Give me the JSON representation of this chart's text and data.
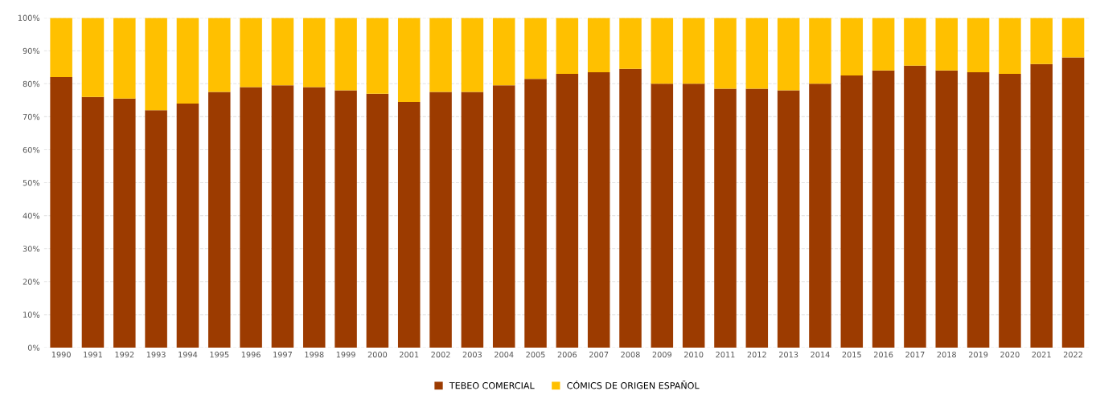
{
  "chart_data": {
    "type": "bar",
    "stacked": true,
    "categories": [
      "1990",
      "1991",
      "1992",
      "1993",
      "1994",
      "1995",
      "1996",
      "1997",
      "1998",
      "1999",
      "2000",
      "2001",
      "2002",
      "2003",
      "2004",
      "2005",
      "2006",
      "2007",
      "2008",
      "2009",
      "2010",
      "2011",
      "2012",
      "2013",
      "2014",
      "2015",
      "2016",
      "2017",
      "2018",
      "2019",
      "2020",
      "2021",
      "2022"
    ],
    "series": [
      {
        "name": "TEBEO COMERCIAL",
        "color": "#9c3b00",
        "values": [
          82,
          76,
          75.5,
          72,
          74,
          77.5,
          79,
          79.5,
          79,
          78,
          77,
          74.5,
          77.5,
          77.5,
          79.5,
          81.5,
          83,
          83.5,
          84.5,
          80,
          80,
          78.5,
          78.5,
          78,
          80,
          82.5,
          84,
          85.5,
          84,
          83.5,
          83,
          86,
          88
        ]
      },
      {
        "name": "CÓMICS DE ORIGEN ESPAÑOL",
        "color": "#ffc000",
        "values": [
          18,
          24,
          24.5,
          28,
          26,
          22.5,
          21,
          20.5,
          21,
          22,
          23,
          25.5,
          22.5,
          22.5,
          20.5,
          18.5,
          17,
          16.5,
          15.5,
          20,
          20,
          21.5,
          21.5,
          22,
          20,
          17.5,
          16,
          14.5,
          16,
          16.5,
          17,
          14,
          12
        ]
      }
    ],
    "ylim": [
      0,
      100
    ],
    "yticks": [
      {
        "value": 0,
        "label": "0%"
      },
      {
        "value": 10,
        "label": "10%"
      },
      {
        "value": 20,
        "label": "20%"
      },
      {
        "value": 30,
        "label": "30%"
      },
      {
        "value": 40,
        "label": "40%"
      },
      {
        "value": 50,
        "label": "50%"
      },
      {
        "value": 60,
        "label": "60%"
      },
      {
        "value": 70,
        "label": "70%"
      },
      {
        "value": 80,
        "label": "80%"
      },
      {
        "value": 90,
        "label": "90%"
      },
      {
        "value": 100,
        "label": "100%"
      }
    ],
    "grid": "y",
    "legend": "bottom"
  }
}
